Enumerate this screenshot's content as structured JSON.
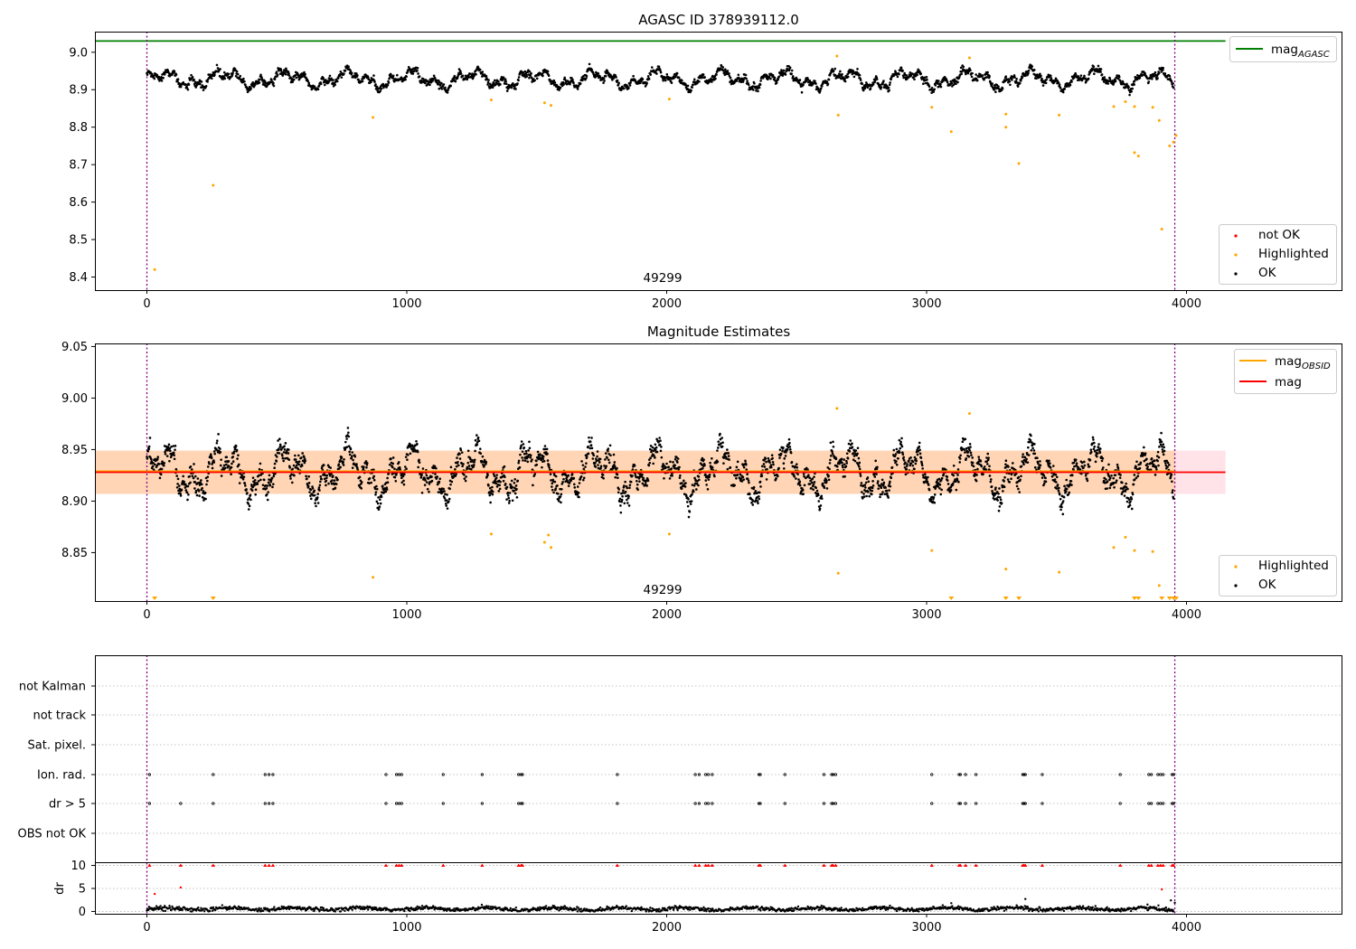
{
  "chart_data": [
    {
      "type": "scatter",
      "title": "AGASC ID 378939112.0",
      "xlim": [
        -200,
        4600
      ],
      "ylim": [
        8.365,
        9.055
      ],
      "xticks": [
        0,
        1000,
        2000,
        3000,
        4000
      ],
      "yticks": [
        8.4,
        8.5,
        8.6,
        8.7,
        8.8,
        8.9,
        9.0
      ],
      "ytick_labels": [
        "8.4",
        "8.5",
        "8.6",
        "8.7",
        "8.8",
        "8.9",
        "9.0"
      ],
      "vertical_lines": [
        0,
        3955
      ],
      "annotation": {
        "text": "49299",
        "x": 1980,
        "y": 8.39
      },
      "hlines": [
        {
          "name": "mag_AGASC",
          "y": 9.03,
          "x0": -200,
          "x1": 4150,
          "color": "#008000"
        }
      ],
      "legend_upper": [
        {
          "label": "mag",
          "sub": "AGASC",
          "color": "#008000",
          "kind": "line"
        }
      ],
      "legend_lower": [
        {
          "label": "not OK",
          "color": "#ff0000",
          "kind": "dot"
        },
        {
          "label": "Highlighted",
          "color": "#ffa500",
          "kind": "dot"
        },
        {
          "label": "OK",
          "color": "#000000",
          "kind": "dot"
        }
      ],
      "series": [
        {
          "name": "OK",
          "color": "#000000",
          "generated": "mag_series",
          "x_range": [
            0,
            3950
          ],
          "n": 2200
        },
        {
          "name": "Highlighted",
          "color": "#ffa500",
          "points": [
            [
              30,
              8.42
            ],
            [
              255,
              8.645
            ],
            [
              870,
              8.826
            ],
            [
              1325,
              8.873
            ],
            [
              1530,
              8.865
            ],
            [
              1555,
              8.858
            ],
            [
              2010,
              8.875
            ],
            [
              2660,
              8.832
            ],
            [
              2655,
              8.99
            ],
            [
              3020,
              8.853
            ],
            [
              3095,
              8.788
            ],
            [
              3165,
              8.985
            ],
            [
              3305,
              8.835
            ],
            [
              3305,
              8.8
            ],
            [
              3355,
              8.703
            ],
            [
              3510,
              8.832
            ],
            [
              3720,
              8.855
            ],
            [
              3765,
              8.868
            ],
            [
              3800,
              8.732
            ],
            [
              3800,
              8.855
            ],
            [
              3815,
              8.723
            ],
            [
              3870,
              8.853
            ],
            [
              3895,
              8.818
            ],
            [
              3905,
              8.528
            ],
            [
              3935,
              8.75
            ],
            [
              3950,
              8.76
            ],
            [
              3960,
              8.778
            ]
          ]
        }
      ]
    },
    {
      "type": "scatter",
      "title": "Magnitude Estimates",
      "xlim": [
        -200,
        4600
      ],
      "ylim": [
        8.803,
        9.053
      ],
      "xticks": [
        0,
        1000,
        2000,
        3000,
        4000
      ],
      "yticks": [
        8.85,
        8.9,
        8.95,
        9.0,
        9.05
      ],
      "ytick_labels": [
        "8.85",
        "8.90",
        "8.95",
        "9.00",
        "9.05"
      ],
      "vertical_lines": [
        0,
        3955
      ],
      "annotation": {
        "text": "49299",
        "x": 1980,
        "y": 8.812
      },
      "band": {
        "y0": 8.907,
        "y1": 8.949,
        "x0": -200,
        "x1": 4150
      },
      "hlines": [
        {
          "name": "mag_OBSID",
          "y": 8.929,
          "x0": -200,
          "x1": 3955,
          "color": "#ffa500"
        },
        {
          "name": "mag",
          "y": 8.928,
          "x0": -200,
          "x1": 4150,
          "color": "#ff0000"
        }
      ],
      "legend_upper": [
        {
          "label": "mag",
          "sub": "OBSID",
          "color": "#ffa500",
          "kind": "line"
        },
        {
          "label": "mag",
          "sub": "",
          "color": "#ff0000",
          "kind": "line"
        }
      ],
      "legend_lower": [
        {
          "label": "Highlighted",
          "color": "#ffa500",
          "kind": "dot"
        },
        {
          "label": "OK",
          "color": "#000000",
          "kind": "dot"
        }
      ],
      "lower_markers_x": [
        30,
        255,
        3095,
        3305,
        3355,
        3800,
        3815,
        3905,
        3935,
        3950,
        3960
      ],
      "series": [
        {
          "name": "OK",
          "color": "#000000",
          "generated": "mag_series",
          "x_range": [
            0,
            3950
          ],
          "n": 2600
        },
        {
          "name": "Highlighted",
          "color": "#ffa500",
          "points": [
            [
              1325,
              8.868
            ],
            [
              1530,
              8.86
            ],
            [
              1545,
              8.867
            ],
            [
              1555,
              8.855
            ],
            [
              2010,
              8.868
            ],
            [
              870,
              8.826
            ],
            [
              2660,
              8.83
            ],
            [
              2655,
              8.99
            ],
            [
              3020,
              8.852
            ],
            [
              3165,
              8.985
            ],
            [
              3305,
              8.834
            ],
            [
              3510,
              8.831
            ],
            [
              3720,
              8.855
            ],
            [
              3765,
              8.865
            ],
            [
              3800,
              8.852
            ],
            [
              3870,
              8.851
            ],
            [
              3895,
              8.818
            ]
          ]
        }
      ]
    },
    {
      "type": "scatter",
      "title": "",
      "xlim": [
        -200,
        4600
      ],
      "xticks": [
        0,
        1000,
        2000,
        3000,
        4000
      ],
      "vertical_lines": [
        0,
        3955
      ],
      "flag_rows": [
        "not Kalman",
        "not track",
        "Sat. pixel.",
        "Ion. rad.",
        "dr > 5",
        "OBS not OK"
      ],
      "ion_rad_x": [
        10,
        255,
        455,
        470,
        485,
        920,
        960,
        970,
        980,
        1140,
        1290,
        1430,
        1440,
        1445,
        1810,
        2110,
        2125,
        2150,
        2160,
        2175,
        2355,
        2360,
        2455,
        2605,
        2635,
        2640,
        2650,
        3020,
        3125,
        3130,
        3150,
        3190,
        3370,
        3375,
        3380,
        3445,
        3745,
        3855,
        3865,
        3890,
        3900,
        3910,
        3945,
        3950
      ],
      "dr_gt5_x": [
        10,
        130,
        255,
        455,
        470,
        485,
        920,
        960,
        970,
        980,
        1140,
        1290,
        1430,
        1440,
        1445,
        1810,
        2110,
        2125,
        2150,
        2160,
        2175,
        2355,
        2360,
        2455,
        2605,
        2635,
        2640,
        2650,
        3020,
        3125,
        3130,
        3150,
        3190,
        3370,
        3375,
        3380,
        3445,
        3745,
        3855,
        3865,
        3890,
        3900,
        3910,
        3945,
        3950
      ],
      "dr_panel": {
        "ylabel": "dr",
        "ylim": [
          -0.5,
          10.5
        ],
        "yticks": [
          0,
          5,
          10
        ],
        "ytick_labels": [
          "0",
          "5",
          "10"
        ],
        "ok_points": {
          "color": "#000000",
          "x_range": [
            0,
            3950
          ],
          "n": 1500
        },
        "outliers": [
          [
            30,
            3.8
          ],
          [
            130,
            5.2
          ],
          [
            3095,
            1.8
          ],
          [
            3380,
            2.7
          ],
          [
            3850,
            1.5
          ],
          [
            3905,
            4.8
          ],
          [
            3940,
            2.4
          ],
          [
            3955,
            1.9
          ]
        ]
      }
    }
  ]
}
